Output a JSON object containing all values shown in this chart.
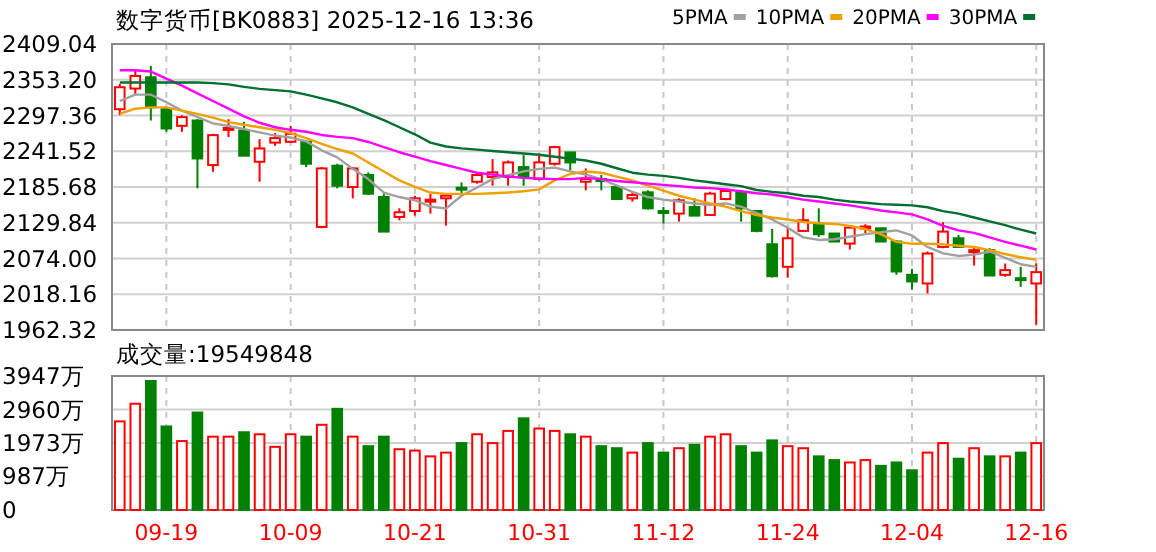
{
  "chart_data": [
    {
      "type": "candlestick",
      "title": "数字货币[BK0883] 2025-12-16 13:36",
      "categories": [
        null,
        null,
        null,
        null,
        null,
        null,
        null,
        null,
        null,
        null,
        null,
        null,
        null,
        null,
        null,
        null,
        null,
        null,
        null,
        null,
        null,
        null,
        null,
        null,
        null,
        null,
        null,
        null,
        null,
        null,
        null,
        null,
        null,
        null,
        null,
        null,
        null,
        null,
        null,
        null,
        null,
        null,
        null,
        null,
        null,
        null,
        null,
        null,
        null,
        null,
        null,
        null,
        null,
        null,
        null,
        null,
        null,
        null,
        null,
        null
      ],
      "ohlc": [
        [
          2307.2,
          2346.7,
          2297.9,
          2341.5
        ],
        [
          2339.4,
          2369.5,
          2331.1,
          2359.2
        ],
        [
          2357.1,
          2374.8,
          2289.5,
          2310.3
        ],
        [
          2307.2,
          2310.3,
          2271.9,
          2277.1
        ],
        [
          2281.2,
          2297.9,
          2271.9,
          2294.8
        ],
        [
          2289.5,
          2291.6,
          2183.6,
          2230.3
        ],
        [
          2219.9,
          2268.8,
          2209.5,
          2266.7
        ],
        [
          2275,
          2291.6,
          2263.6,
          2278
        ],
        [
          2274,
          2287.5,
          2234.5,
          2234.5
        ],
        [
          2225.1,
          2260.5,
          2194,
          2245.9
        ],
        [
          2255,
          2270,
          2250,
          2262
        ],
        [
          2256.3,
          2281.2,
          2254.3,
          2268.8
        ],
        [
          2256.3,
          2258.4,
          2216.8,
          2222
        ],
        [
          2123.3,
          2216.8,
          2121.2,
          2214.7
        ],
        [
          2218.9,
          2222,
          2183.6,
          2187.7
        ],
        [
          2185.6,
          2216.8,
          2168,
          2214.7
        ],
        [
          2204.4,
          2208.5,
          2173.2,
          2175.3
        ],
        [
          2170.1,
          2175.3,
          2116,
          2116
        ],
        [
          2138.9,
          2152.4,
          2133.7,
          2146.2
        ],
        [
          2148.2,
          2172.1,
          2141,
          2168
        ],
        [
          2162.8,
          2175.3,
          2144.1,
          2165.9
        ],
        [
          2168,
          2175.3,
          2125.4,
          2172.1
        ],
        [
          2184.6,
          2192.9,
          2173.2,
          2182.5
        ],
        [
          2193.9,
          2208.5,
          2190.8,
          2204.4
        ],
        [
          2201.3,
          2229.3,
          2187.7,
          2208.5
        ],
        [
          2201.3,
          2227.2,
          2187.7,
          2224.1
        ],
        [
          2216.8,
          2235.6,
          2187.7,
          2201.3
        ],
        [
          2198.1,
          2237.6,
          2196,
          2224.1
        ],
        [
          2222,
          2250,
          2218.9,
          2248
        ],
        [
          2239.7,
          2239.7,
          2211.6,
          2224.1
        ],
        [
          2193.9,
          2214.7,
          2180.5,
          2198.1
        ],
        [
          2198.1,
          2204.4,
          2180.5,
          2195
        ],
        [
          2185.6,
          2185.6,
          2166.9,
          2166.9
        ],
        [
          2168,
          2178.4,
          2162.8,
          2173.2
        ],
        [
          2177.4,
          2180.5,
          2150.3,
          2152.4
        ],
        [
          2148.2,
          2154.5,
          2128.5,
          2146.2
        ],
        [
          2144.1,
          2168,
          2131.6,
          2164.9
        ],
        [
          2154.5,
          2168,
          2141,
          2141
        ],
        [
          2142,
          2178.4,
          2141,
          2175.3
        ],
        [
          2166.9,
          2183.6,
          2164.9,
          2179.4
        ],
        [
          2177.4,
          2177.4,
          2131.6,
          2152.4
        ],
        [
          2148.2,
          2148.2,
          2115,
          2117.1
        ],
        [
          2096.3,
          2120.2,
          2044.3,
          2046.4
        ],
        [
          2061,
          2122.3,
          2044.3,
          2105.6
        ],
        [
          2117.1,
          2152.4,
          2117.1,
          2133.7
        ],
        [
          2128.5,
          2152.4,
          2107.7,
          2111.9
        ],
        [
          2113,
          2113,
          2100.5,
          2100.5
        ],
        [
          2097.3,
          2125.4,
          2088,
          2122.3
        ],
        [
          2122.3,
          2127.5,
          2113,
          2124
        ],
        [
          2121.2,
          2121.2,
          2100.5,
          2100.5
        ],
        [
          2100.5,
          2102.5,
          2048.5,
          2053.7
        ],
        [
          2048.5,
          2057.8,
          2025.6,
          2038.1
        ],
        [
          2035,
          2084.9,
          2019.4,
          2081.8
        ],
        [
          2092.1,
          2130.6,
          2090.1,
          2116
        ],
        [
          2105.6,
          2110.8,
          2092.1,
          2092.1
        ],
        [
          2084.9,
          2092.1,
          2063,
          2087
        ],
        [
          2087,
          2090.1,
          2047.5,
          2047.5
        ],
        [
          2048.5,
          2066.2,
          2045.4,
          2055.8
        ],
        [
          2043.3,
          2061,
          2029.8,
          2042.3
        ],
        [
          2035,
          2066.2,
          1970.7,
          2052.7
        ]
      ],
      "colors": [
        "#ff0000",
        "#ff0000",
        "#008000",
        "#008000",
        "#ff0000",
        "#008000",
        "#ff0000",
        "#ff0000",
        "#008000",
        "#ff0000",
        "#ff0000",
        "#ff0000",
        "#008000",
        "#ff0000",
        "#008000",
        "#ff0000",
        "#008000",
        "#008000",
        "#ff0000",
        "#ff0000",
        "#ff0000",
        "#ff0000",
        "#008000",
        "#ff0000",
        "#ff0000",
        "#ff0000",
        "#008000",
        "#ff0000",
        "#ff0000",
        "#008000",
        "#ff0000",
        "#008000",
        "#008000",
        "#ff0000",
        "#008000",
        "#008000",
        "#ff0000",
        "#008000",
        "#ff0000",
        "#ff0000",
        "#008000",
        "#008000",
        "#008000",
        "#ff0000",
        "#ff0000",
        "#008000",
        "#008000",
        "#ff0000",
        "#ff0000",
        "#008000",
        "#008000",
        "#008000",
        "#ff0000",
        "#ff0000",
        "#008000",
        "#ff0000",
        "#008000",
        "#ff0000",
        "#008000",
        "#ff0000"
      ],
      "series": [
        {
          "name": "5PMA",
          "type": "line",
          "color": "#a0a0a0",
          "values": [
            2320,
            2330,
            2330,
            2318,
            2305,
            2295,
            2285,
            2281,
            2276,
            2271,
            2266,
            2263,
            2257,
            2243,
            2232,
            2214,
            2198,
            2177,
            2170,
            2165,
            2155,
            2152,
            2172,
            2185,
            2198,
            2204,
            2210,
            2214,
            2216,
            2210,
            2205,
            2198,
            2188,
            2178,
            2170,
            2166,
            2163,
            2160,
            2158,
            2160,
            2155,
            2145,
            2135,
            2122,
            2107,
            2103,
            2104,
            2108,
            2112,
            2115,
            2118,
            2110,
            2092,
            2082,
            2078,
            2080,
            2085,
            2075,
            2065,
            2061
          ]
        },
        {
          "name": "10PMA",
          "type": "line",
          "color": "#f0a000",
          "values": [
            2300,
            2308,
            2310,
            2310,
            2305,
            2300,
            2294,
            2287,
            2283,
            2279,
            2275,
            2270,
            2262,
            2253,
            2245,
            2238,
            2224,
            2210,
            2196,
            2186,
            2177,
            2175,
            2175,
            2175,
            2176,
            2177,
            2179,
            2182,
            2196,
            2206,
            2210,
            2208,
            2202,
            2196,
            2188,
            2180,
            2172,
            2166,
            2160,
            2155,
            2148,
            2142,
            2138,
            2135,
            2131,
            2129,
            2128,
            2125,
            2120,
            2112,
            2100,
            2097,
            2097,
            2096,
            2094,
            2092,
            2087,
            2081,
            2076,
            2072
          ]
        },
        {
          "name": "20PMA",
          "type": "line",
          "color": "#ff00ff",
          "values": [
            2368,
            2368,
            2366,
            2355,
            2344,
            2332,
            2320,
            2308,
            2296,
            2286,
            2279,
            2275,
            2272,
            2267,
            2264,
            2262,
            2256,
            2248,
            2240,
            2233,
            2226,
            2220,
            2214,
            2208,
            2205,
            2202,
            2200,
            2199,
            2198,
            2198,
            2200,
            2198,
            2195,
            2193,
            2191,
            2189,
            2187,
            2185,
            2184,
            2182,
            2179,
            2176,
            2174,
            2170,
            2166,
            2163,
            2160,
            2157,
            2153,
            2149,
            2146,
            2143,
            2135,
            2125,
            2118,
            2114,
            2107,
            2100,
            2094,
            2088
          ]
        },
        {
          "name": "30PMA",
          "type": "line",
          "color": "#006f2f",
          "values": [
            2349,
            2349,
            2349,
            2349,
            2349,
            2349,
            2348,
            2346,
            2342,
            2339,
            2337,
            2335,
            2330,
            2324,
            2318,
            2310,
            2300,
            2290,
            2279,
            2268,
            2255,
            2249,
            2246,
            2244,
            2242,
            2240,
            2238,
            2236,
            2233,
            2230,
            2227,
            2222,
            2215,
            2208,
            2205,
            2203,
            2200,
            2196,
            2193,
            2190,
            2187,
            2181,
            2178,
            2176,
            2172,
            2170,
            2166,
            2163,
            2161,
            2159,
            2158,
            2157,
            2154,
            2148,
            2144,
            2138,
            2132,
            2126,
            2119,
            2113
          ]
        }
      ],
      "ylim": [
        1962.32,
        2409.04
      ],
      "yticks": [
        1962.32,
        2018.16,
        {
          "value": 2074,
          "label": "2074.00"
        },
        2129.84,
        2185.68,
        2241.52,
        2297.36,
        {
          "value": 2353.2,
          "label": "2353.20"
        },
        2409.04
      ],
      "grid": true,
      "legend": "top right",
      "tick_labels": "y"
    },
    {
      "type": "bar",
      "title": "成交量:19549848",
      "categories": [
        null,
        null,
        null,
        "09-19",
        null,
        null,
        null,
        null,
        null,
        null,
        null,
        "10-09",
        null,
        null,
        null,
        null,
        null,
        null,
        null,
        "10-21",
        null,
        null,
        null,
        null,
        null,
        null,
        null,
        "10-31",
        null,
        null,
        null,
        null,
        null,
        null,
        null,
        "11-12",
        null,
        null,
        null,
        null,
        null,
        null,
        null,
        "11-24",
        null,
        null,
        null,
        null,
        null,
        null,
        null,
        "12-04",
        null,
        null,
        null,
        null,
        null,
        null,
        null,
        "12-16"
      ],
      "values": [
        2610,
        3130,
        3800,
        2460,
        2030,
        2870,
        2160,
        2160,
        2290,
        2230,
        1860,
        2230,
        2160,
        2510,
        2980,
        2160,
        1880,
        2160,
        1790,
        1750,
        1580,
        1690,
        1970,
        2230,
        1970,
        2330,
        2700,
        2400,
        2330,
        2230,
        2160,
        1880,
        1820,
        1690,
        1970,
        1690,
        1820,
        1920,
        2160,
        2230,
        1880,
        1690,
        2050,
        1880,
        1820,
        1580,
        1470,
        1400,
        1470,
        1300,
        1400,
        1170,
        1690,
        1970,
        1510,
        1820,
        1580,
        1580,
        1690,
        1970
      ],
      "colors": [
        "#ff0000",
        "#ff0000",
        "#008000",
        "#008000",
        "#ff0000",
        "#008000",
        "#ff0000",
        "#ff0000",
        "#008000",
        "#ff0000",
        "#ff0000",
        "#ff0000",
        "#008000",
        "#ff0000",
        "#008000",
        "#ff0000",
        "#008000",
        "#008000",
        "#ff0000",
        "#ff0000",
        "#ff0000",
        "#ff0000",
        "#008000",
        "#ff0000",
        "#ff0000",
        "#ff0000",
        "#008000",
        "#ff0000",
        "#ff0000",
        "#008000",
        "#ff0000",
        "#008000",
        "#008000",
        "#ff0000",
        "#008000",
        "#008000",
        "#ff0000",
        "#008000",
        "#ff0000",
        "#ff0000",
        "#008000",
        "#008000",
        "#008000",
        "#ff0000",
        "#ff0000",
        "#008000",
        "#008000",
        "#ff0000",
        "#ff0000",
        "#008000",
        "#008000",
        "#008000",
        "#ff0000",
        "#ff0000",
        "#008000",
        "#ff0000",
        "#008000",
        "#ff0000",
        "#008000",
        "#ff0000"
      ],
      "ylim": [
        0,
        3947
      ],
      "yticks": [
        0,
        {
          "value": 987,
          "label": "987万"
        },
        {
          "value": 1973,
          "label": "1973万"
        },
        {
          "value": 2960,
          "label": "2960万"
        },
        {
          "value": 3947,
          "label": "3947万"
        }
      ],
      "grid": true
    }
  ]
}
